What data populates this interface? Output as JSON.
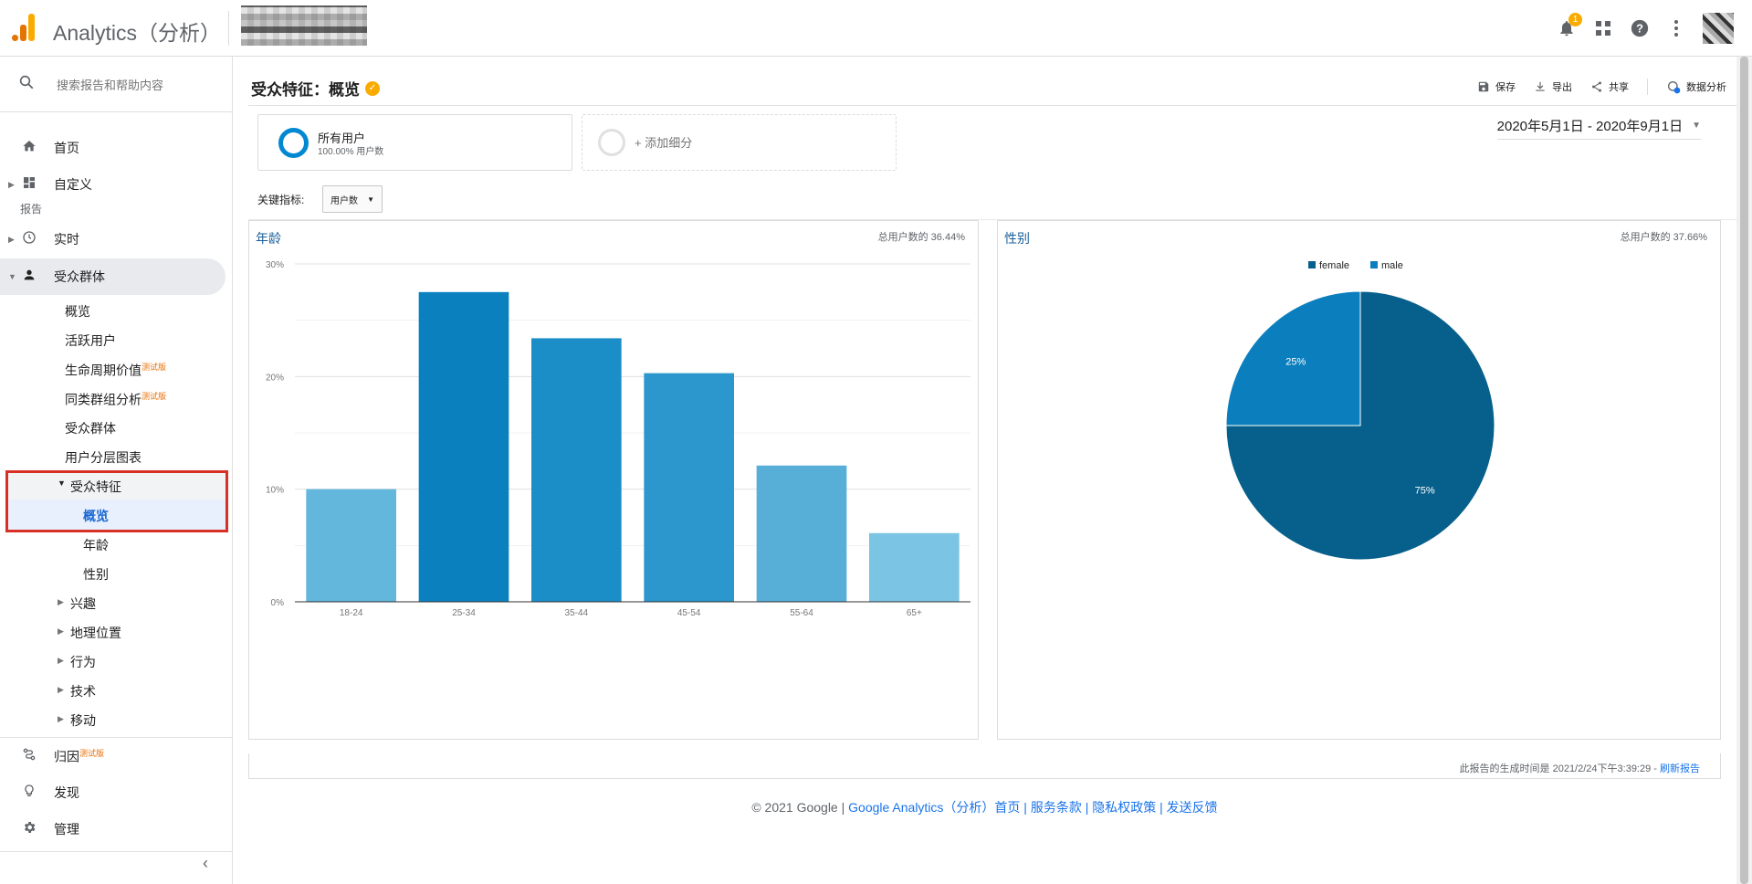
{
  "app": {
    "title": "Analytics（分析）"
  },
  "topbar": {
    "notifications_count": "1"
  },
  "sidebar": {
    "search_placeholder": "搜索报告和帮助内容",
    "home": "首页",
    "customize": "自定义",
    "section_reports": "报告",
    "realtime": "实时",
    "audience": "受众群体",
    "audience_items": [
      {
        "label": "概览"
      },
      {
        "label": "活跃用户"
      },
      {
        "label": "生命周期价值",
        "badge": "测试版"
      },
      {
        "label": "同类群组分析",
        "badge": "测试版"
      },
      {
        "label": "受众群体"
      },
      {
        "label": "用户分层图表"
      }
    ],
    "demographics": "受众特征",
    "demographics_items": [
      "概览",
      "年龄",
      "性别"
    ],
    "audience_more": [
      "兴趣",
      "地理位置",
      "行为",
      "技术",
      "移动"
    ],
    "attribution": "归因",
    "attribution_badge": "测试版",
    "discover": "发现",
    "admin": "管理"
  },
  "header": {
    "title": "受众特征：概览",
    "actions": {
      "save": "保存",
      "export": "导出",
      "share": "共享",
      "insights": "数据分析"
    }
  },
  "segments": {
    "all_users": {
      "name": "所有用户",
      "sub": "100.00% 用户数"
    },
    "add_segment": "+ 添加细分"
  },
  "date_range": "2020年5月1日 - 2020年9月1日",
  "metric": {
    "label": "关键指标:",
    "value": "用户数"
  },
  "age_panel": {
    "title": "年龄",
    "pct": "总用户数的 36.44%"
  },
  "gender_panel": {
    "title": "性别",
    "pct": "总用户数的 37.66%"
  },
  "chart_data": [
    {
      "type": "bar",
      "title": "年龄",
      "categories": [
        "18-24",
        "25-34",
        "35-44",
        "45-54",
        "55-64",
        "65+"
      ],
      "values": [
        10,
        27.5,
        23.4,
        20.3,
        12.1,
        6.1
      ],
      "colors": [
        "#63b6dc",
        "#0a80bf",
        "#1b8ec8",
        "#2b97cc",
        "#57afd8",
        "#7cc4e3"
      ],
      "yticks": [
        "0%",
        "10%",
        "20%",
        "30%"
      ],
      "ylim": [
        0,
        30
      ],
      "grid": true
    },
    {
      "type": "pie",
      "title": "性别",
      "series": [
        {
          "name": "female",
          "value": 75,
          "label": "75%",
          "color": "#07608b"
        },
        {
          "name": "male",
          "value": 25,
          "label": "25%",
          "color": "#0b7fbe"
        }
      ],
      "legend_position": "top"
    }
  ],
  "footer": {
    "generated": "此报告的生成时间是 2021/2/24下午3:39:29 - ",
    "refresh": "刷新报告",
    "copyright": "© 2021 Google | ",
    "links": "Google Analytics（分析）首页 | 服务条款 | 隐私权政策 | 发送反馈"
  }
}
